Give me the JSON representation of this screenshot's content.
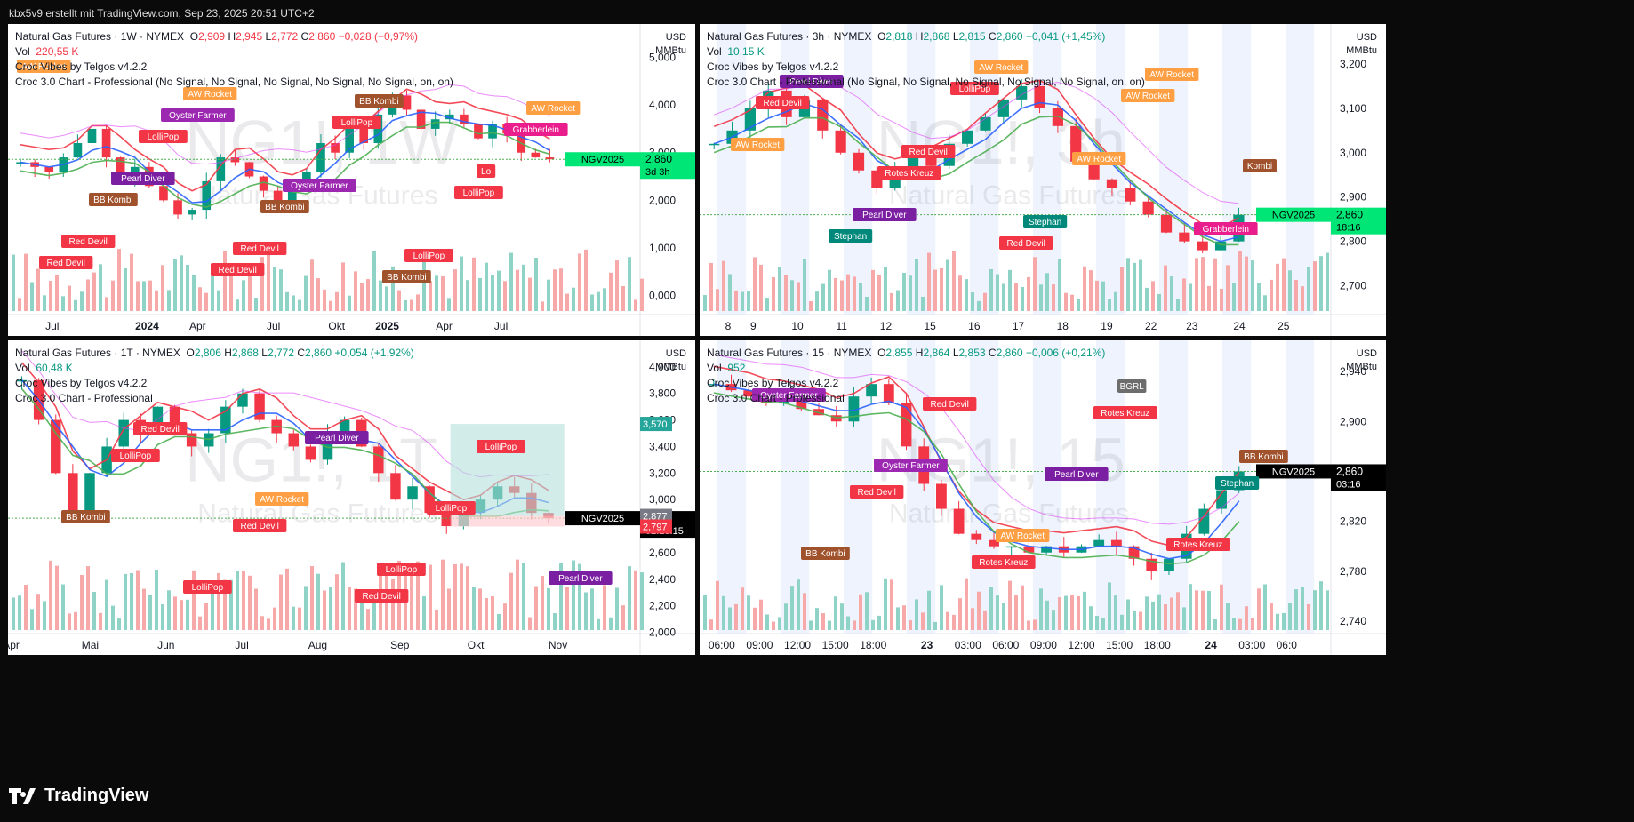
{
  "topbar": {
    "text": "kbx5v9 erstellt mit TradingView.com, Sep 23, 2025 20:51 UTC+2"
  },
  "logo": {
    "text": "TradingView"
  },
  "panels": [
    {
      "legend": {
        "title": "Natural Gas Futures · 1W · NYMEX",
        "o_label": "O",
        "o": "2,909",
        "h_label": "H",
        "h": "2,945",
        "l_label": "L",
        "l": "2,772",
        "c_label": "C",
        "c": "2,860",
        "chg": "−0,028 (−0,97%)",
        "vol_label": "Vol",
        "vol": "220,55 K",
        "ind1": "Croc Vibes by Telgos v4.2.2",
        "ind2": "Croc 3.0 Chart - Professional (No Signal, No Signal, No Signal, No Signal, No Signal, on, on)"
      },
      "currency": "USD",
      "unit": "MMBtu",
      "watermark": "NG1!, 1W",
      "watermark_sub": "Natural Gas Futures",
      "badge_label": "NGV2025",
      "badge_price": "2,860",
      "badge_time": "3d 3h",
      "signals": [
        "AW Rocket",
        "LolliPop",
        "BB Kombi",
        "BB Kombi",
        "Grabberlein",
        "BB Kombi",
        "Red Devil",
        "LolliPop",
        "LolliPop",
        "Red Devil",
        "Oyster Farmer",
        "Oyster Farmer",
        "LolliPop",
        "AW Rocket",
        "Pearl Diver",
        "Red Devil",
        "BB Kombi",
        "Lo",
        "Red Devil",
        "AW Rocket"
      ]
    },
    {
      "legend": {
        "title": "Natural Gas Futures · 3h · NYMEX",
        "o_label": "O",
        "o": "2,818",
        "h_label": "H",
        "h": "2,868",
        "l_label": "L",
        "l": "2,815",
        "c_label": "C",
        "c": "2,860",
        "chg": "+0,041 (+1,45%)",
        "vol_label": "Vol",
        "vol": "10,15 K",
        "ind1": "Croc Vibes by Telgos v4.2.2",
        "ind2": "Croc 3.0 Chart - Professional (No Signal, No Signal, No Signal, No Signal, No Signal, on, on)"
      },
      "currency": "USD",
      "unit": "MMBtu",
      "watermark": "NG1!, 3h",
      "watermark_sub": "Natural Gas Futures",
      "badge_label": "NGV2025",
      "badge_price": "2,860",
      "badge_time": "18:16",
      "signals": [
        "Red Devil",
        "Rotes Kreuz",
        "Red Devil",
        "AW Rocket",
        "Kombi",
        "Stephan",
        "LolliPop",
        "AW Rocket",
        "Grabberlein",
        "Pearl Diver",
        "Red Devil",
        "Stephan",
        "AW Rocket",
        "AW Rocket",
        "Pearl Diver",
        "AW Rocket"
      ]
    },
    {
      "legend": {
        "title": "Natural Gas Futures · 1T · NYMEX",
        "o_label": "O",
        "o": "2,806",
        "h_label": "H",
        "h": "2,868",
        "l_label": "L",
        "l": "2,772",
        "c_label": "C",
        "c": "2,860",
        "chg": "+0,054 (+1,92%)",
        "vol_label": "Vol",
        "vol": "60,48 K",
        "ind1": "Croc Vibes by Telgos v4.2.2",
        "ind2": "Croc 3.0 Chart - Professional"
      },
      "currency": "USD",
      "unit": "MMBtu",
      "watermark": "NG1!, 1T",
      "watermark_sub": "Natural Gas Futures",
      "badge_label": "NGV2025",
      "badge_price": "2,860",
      "badge_time": "02:18:15",
      "pos_top": "3,570",
      "pos_mid": "2,877",
      "pos_bot": "2,797",
      "signals": [
        "LolliPop",
        "Red Devil",
        "Red Devil",
        "LolliPop",
        "BB Kombi",
        "LolliPop",
        "Pearl Diver",
        "LolliPop",
        "Pearl Diver",
        "Red Devil",
        "AW Rocket",
        "LolliPop"
      ]
    },
    {
      "legend": {
        "title": "Natural Gas Futures · 15 · NYMEX",
        "o_label": "O",
        "o": "2,855",
        "h_label": "H",
        "h": "2,864",
        "l_label": "L",
        "l": "2,853",
        "c_label": "C",
        "c": "2,860",
        "chg": "+0,006 (+0,21%)",
        "vol_label": "Vol",
        "vol": "952",
        "ind1": "Croc Vibes by Telgos v4.2.2",
        "ind2": "Croc 3.0 Chart - Professional"
      },
      "currency": "USD",
      "unit": "MMBtu",
      "watermark": "NG1!, 15",
      "watermark_sub": "Natural Gas Futures",
      "badge_label": "NGV2025",
      "badge_price": "2,860",
      "badge_time": "03:16",
      "signals": [
        "Red Devil",
        "Rotes Kreuz",
        "Rotes Kreuz",
        "Stephan",
        "BB Kombi",
        "Red Devil",
        "Pearl Diver",
        "Rotes Kreuz",
        "Oyster Farmer",
        "Oyster Farmer",
        "AW Rocket",
        "BGRL",
        "BB Kombi"
      ]
    }
  ],
  "chart_data": [
    {
      "type": "candlestick",
      "title": "Natural Gas Futures · 1W · NYMEX",
      "x_ticks": [
        "Jul",
        "2024",
        "Apr",
        "Jul",
        "Okt",
        "2025",
        "Apr",
        "Jul"
      ],
      "y_ticks": [
        "5,000",
        "4,000",
        "3,000",
        "2,000",
        "1,000",
        "0,000"
      ],
      "ylim": [
        -0.4,
        5.7
      ],
      "close": [
        2.8,
        2.7,
        2.6,
        2.9,
        3.2,
        3.5,
        2.9,
        2.5,
        2.7,
        2.3,
        2.0,
        1.7,
        1.8,
        2.4,
        2.9,
        2.8,
        2.5,
        2.2,
        2.0,
        2.3,
        2.6,
        3.2,
        3.0,
        3.5,
        3.2,
        3.8,
        4.2,
        3.9,
        3.5,
        3.7,
        3.8,
        3.6,
        3.3,
        3.6,
        3.4,
        3.0,
        2.9,
        2.86
      ],
      "last": "2,860"
    },
    {
      "type": "candlestick",
      "title": "Natural Gas Futures · 3h · NYMEX",
      "x_ticks": [
        "8",
        "9",
        "10",
        "11",
        "12",
        "15",
        "16",
        "17",
        "18",
        "19",
        "22",
        "23",
        "24",
        "25"
      ],
      "y_ticks": [
        "3,200",
        "3,100",
        "3,000",
        "2,900",
        "2,800",
        "2,700"
      ],
      "ylim": [
        2.635,
        3.29
      ],
      "close": [
        3.02,
        3.05,
        3.1,
        3.14,
        3.08,
        3.12,
        3.05,
        3.0,
        2.96,
        2.92,
        2.96,
        2.99,
        2.97,
        3.02,
        3.05,
        3.08,
        3.12,
        3.15,
        3.1,
        3.06,
        2.98,
        2.94,
        2.92,
        2.89,
        2.86,
        2.82,
        2.8,
        2.78,
        2.8,
        2.86
      ],
      "last": "2,860"
    },
    {
      "type": "candlestick",
      "title": "Natural Gas Futures · 1T · NYMEX",
      "x_ticks": [
        "Apr",
        "Mai",
        "Jun",
        "Jul",
        "Aug",
        "Sep",
        "Okt",
        "Nov"
      ],
      "y_ticks": [
        "4,000",
        "3,800",
        "3,600",
        "3,400",
        "3,200",
        "3,000",
        "2,800",
        "2,600",
        "2,400",
        "2,200",
        "2,000"
      ],
      "ylim": [
        1.99,
        4.2
      ],
      "close": [
        3.9,
        3.6,
        3.2,
        2.9,
        3.2,
        3.4,
        3.6,
        3.5,
        3.7,
        3.5,
        3.4,
        3.5,
        3.7,
        3.8,
        3.6,
        3.5,
        3.4,
        3.3,
        3.5,
        3.6,
        3.4,
        3.2,
        3.0,
        3.1,
        2.9,
        2.8,
        2.9,
        3.0,
        3.1,
        3.05,
        2.9,
        2.86
      ],
      "last": "2,860"
    },
    {
      "type": "candlestick",
      "title": "Natural Gas Futures · 15 · NYMEX",
      "x_ticks": [
        "06:00",
        "09:00",
        "12:00",
        "15:00",
        "18:00",
        "23",
        "03:00",
        "06:00",
        "09:00",
        "12:00",
        "15:00",
        "18:00",
        "24",
        "03:00",
        "06:0"
      ],
      "y_ticks": [
        "2,940",
        "2,900",
        "2,860",
        "2,820",
        "2,780",
        "2,740"
      ],
      "ylim": [
        2.73,
        2.965
      ],
      "close": [
        2.93,
        2.925,
        2.92,
        2.915,
        2.92,
        2.91,
        2.905,
        2.9,
        2.92,
        2.93,
        2.915,
        2.88,
        2.85,
        2.83,
        2.81,
        2.805,
        2.8,
        2.8,
        2.795,
        2.8,
        2.795,
        2.8,
        2.805,
        2.8,
        2.79,
        2.78,
        2.79,
        2.81,
        2.83,
        2.845,
        2.86
      ],
      "last": "2,860"
    }
  ]
}
